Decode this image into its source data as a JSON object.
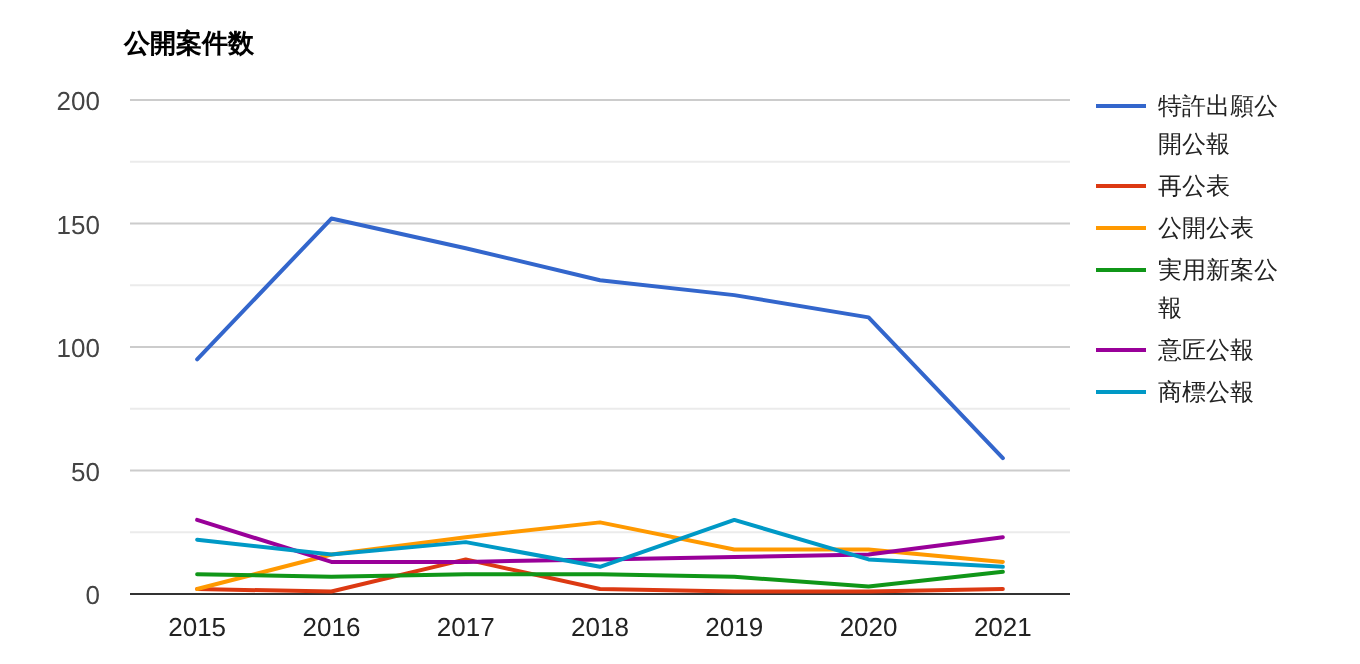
{
  "chart_data": {
    "type": "line",
    "title": "公開案件数",
    "categories": [
      "2015",
      "2016",
      "2017",
      "2018",
      "2019",
      "2020",
      "2021"
    ],
    "series": [
      {
        "name": "特許出願公開公報",
        "color": "#3366cc",
        "values": [
          95,
          152,
          140,
          127,
          121,
          112,
          55
        ]
      },
      {
        "name": "再公表",
        "color": "#dc3912",
        "values": [
          2,
          1,
          14,
          2,
          1,
          1,
          2
        ]
      },
      {
        "name": "公開公表",
        "color": "#ff9900",
        "values": [
          2,
          16,
          23,
          29,
          18,
          18,
          13
        ]
      },
      {
        "name": "実用新案公報",
        "color": "#109618",
        "values": [
          8,
          7,
          8,
          8,
          7,
          3,
          9
        ]
      },
      {
        "name": "意匠公報",
        "color": "#990099",
        "values": [
          30,
          13,
          13,
          14,
          15,
          16,
          23
        ]
      },
      {
        "name": "商標公報",
        "color": "#0099c6",
        "values": [
          22,
          16,
          21,
          11,
          30,
          14,
          11
        ]
      }
    ],
    "ylim": [
      0,
      200
    ],
    "yticks": [
      0,
      {
        "value": 25,
        "label": null
      },
      50,
      {
        "value": 75,
        "label": null
      },
      100,
      {
        "value": 125,
        "label": null
      },
      150,
      {
        "value": 175,
        "label": null
      },
      200
    ],
    "grid": "y",
    "legend": "right",
    "marker": "none",
    "line_style": "solid"
  }
}
